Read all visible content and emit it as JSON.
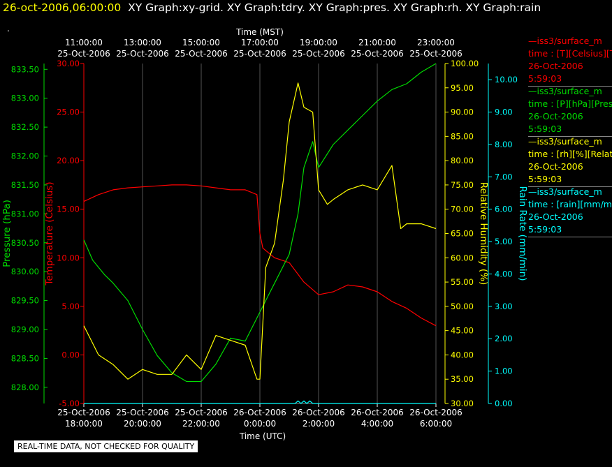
{
  "header": {
    "timestamp": "26-oct-2006,06:00:00",
    "graphs_text": "XY Graph:xy-grid.  XY Graph:tdry.  XY Graph:pres.  XY Graph:rh.  XY Graph:rain",
    "dot": "."
  },
  "notice": "REAL-TIME DATA, NOT CHECKED FOR QUALITY",
  "legend": [
    {
      "name": "iss3/surface_m",
      "unit": "time : [T][Celsius][T",
      "date": "26-Oct-2006",
      "time": "5:59:03",
      "color": "#ff0000"
    },
    {
      "name": "iss3/surface_m",
      "unit": "time : [P][hPa][Pres",
      "date": "26-Oct-2006",
      "time": "5:59:03",
      "color": "#00dd00"
    },
    {
      "name": "iss3/surface_m",
      "unit": "time : [rh][%][Relativ",
      "date": "26-Oct-2006",
      "time": "5:59:03",
      "color": "#ffff00"
    },
    {
      "name": "iss3/surface_m",
      "unit": "time : [rain][mm/min",
      "date": "26-Oct-2006",
      "time": "5:59:03",
      "color": "#00ffff"
    }
  ],
  "chart_data": {
    "type": "line",
    "top_axis": {
      "label": "Time (MST)",
      "ticks": [
        {
          "time": "11:00:00",
          "date": "25-Oct-2006"
        },
        {
          "time": "13:00:00",
          "date": "25-Oct-2006"
        },
        {
          "time": "15:00:00",
          "date": "25-Oct-2006"
        },
        {
          "time": "17:00:00",
          "date": "25-Oct-2006"
        },
        {
          "time": "19:00:00",
          "date": "25-Oct-2006"
        },
        {
          "time": "21:00:00",
          "date": "25-Oct-2006"
        },
        {
          "time": "23:00:00",
          "date": "25-Oct-2006"
        }
      ]
    },
    "bottom_axis": {
      "label": "Time (UTC)",
      "ticks": [
        {
          "date": "25-Oct-2006",
          "time": "18:00:00"
        },
        {
          "date": "25-Oct-2006",
          "time": "20:00:00"
        },
        {
          "date": "25-Oct-2006",
          "time": "22:00:00"
        },
        {
          "date": "26-Oct-2006",
          "time": "0:00:00"
        },
        {
          "date": "26-Oct-2006",
          "time": "2:00:00"
        },
        {
          "date": "26-Oct-2006",
          "time": "4:00:00"
        },
        {
          "date": "26-Oct-2006",
          "time": "6:00:00"
        }
      ],
      "ylim_hours_utc": [
        18,
        30
      ]
    },
    "axes": {
      "pressure": {
        "label": "Pressure (hPa)",
        "ylim": [
          827.72,
          833.6
        ],
        "ticks": [
          "833.50",
          "833.00",
          "832.50",
          "832.00",
          "831.50",
          "831.00",
          "830.50",
          "830.00",
          "829.50",
          "829.00",
          "828.50",
          "828.00"
        ],
        "color": "#00dd00"
      },
      "temperature": {
        "label": "Temperature (Celsius)",
        "ylim": [
          -5,
          30
        ],
        "ticks": [
          "30.00",
          "25.00",
          "20.00",
          "15.00",
          "10.00",
          "5.00",
          "0.00",
          "-5.00"
        ],
        "color": "#ff0000"
      },
      "humidity": {
        "label": "Relative Humidity (%)",
        "ylim": [
          30,
          100
        ],
        "ticks": [
          "100.00",
          "95.00",
          "90.00",
          "85.00",
          "80.00",
          "75.00",
          "70.00",
          "65.00",
          "60.00",
          "55.00",
          "50.00",
          "45.00",
          "40.00",
          "35.00",
          "30.00"
        ],
        "color": "#ffff00"
      },
      "rain": {
        "label": "Rain Rate (mm/min)",
        "ylim": [
          0,
          10.5
        ],
        "ticks": [
          "10.00",
          "9.00",
          "8.00",
          "7.00",
          "6.00",
          "5.00",
          "4.00",
          "3.00",
          "2.00",
          "1.00",
          "0.00"
        ],
        "color": "#00ffff"
      }
    },
    "grid": true,
    "series": [
      {
        "axis": "temperature",
        "color": "#ff0000",
        "x": [
          18.0,
          18.5,
          19.0,
          19.5,
          20.0,
          20.5,
          21.0,
          21.5,
          22.0,
          22.5,
          23.0,
          23.5,
          23.9,
          24.0,
          24.1,
          24.5,
          25.0,
          25.5,
          26.0,
          26.5,
          27.0,
          27.5,
          28.0,
          28.5,
          29.0,
          29.5,
          30.0
        ],
        "y": [
          15.8,
          16.5,
          17.0,
          17.2,
          17.3,
          17.4,
          17.5,
          17.5,
          17.4,
          17.2,
          17.0,
          17.0,
          16.5,
          12.5,
          11.0,
          10.0,
          9.5,
          7.5,
          6.2,
          6.5,
          7.2,
          7.0,
          6.5,
          5.5,
          4.8,
          3.8,
          3.0
        ]
      },
      {
        "axis": "pressure",
        "color": "#00dd00",
        "x": [
          18.0,
          18.3,
          18.7,
          19.0,
          19.5,
          20.0,
          20.5,
          21.0,
          21.5,
          22.0,
          22.5,
          23.0,
          23.5,
          24.0,
          24.5,
          25.0,
          25.3,
          25.5,
          25.8,
          26.0,
          26.5,
          27.0,
          27.5,
          28.0,
          28.5,
          29.0,
          29.5,
          30.0
        ],
        "y": [
          830.55,
          830.2,
          829.95,
          829.8,
          829.5,
          829.0,
          828.55,
          828.25,
          828.1,
          828.1,
          828.4,
          828.85,
          828.8,
          829.3,
          829.8,
          830.3,
          831.0,
          831.8,
          832.25,
          831.8,
          832.2,
          832.45,
          832.7,
          832.95,
          833.15,
          833.25,
          833.45,
          833.6
        ]
      },
      {
        "axis": "humidity",
        "color": "#ffff00",
        "x": [
          18.0,
          18.5,
          19.0,
          19.5,
          20.0,
          20.5,
          21.0,
          21.5,
          22.0,
          22.5,
          23.0,
          23.5,
          23.9,
          24.0,
          24.2,
          24.5,
          24.8,
          25.0,
          25.3,
          25.5,
          25.8,
          26.0,
          26.3,
          26.5,
          27.0,
          27.5,
          28.0,
          28.5,
          28.8,
          29.0,
          29.5,
          30.0
        ],
        "y": [
          46,
          40,
          38,
          35,
          37,
          36,
          36,
          40,
          37,
          44,
          43,
          42,
          35,
          35,
          58,
          63,
          76,
          88,
          96,
          91,
          90,
          74,
          71,
          72,
          74,
          75,
          74,
          79,
          66,
          67,
          67,
          66
        ]
      },
      {
        "axis": "rain",
        "color": "#00ffff",
        "x": [
          18.0,
          25.2,
          25.3,
          25.4,
          25.5,
          25.6,
          25.7,
          25.8,
          30.0
        ],
        "y": [
          0.0,
          0.0,
          0.08,
          0.0,
          0.08,
          0.0,
          0.08,
          0.0,
          0.0
        ]
      }
    ]
  }
}
